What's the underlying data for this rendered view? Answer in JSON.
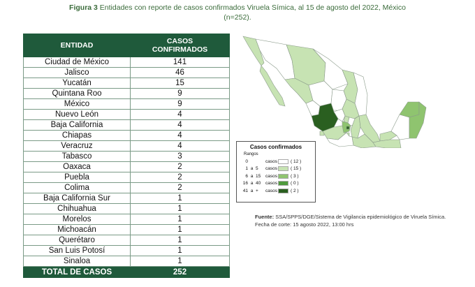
{
  "title": {
    "figure_label": "Figura 3",
    "text": "Entidades con reporte de casos confirmados Viruela Símica, al 15 de agosto del 2022, México",
    "n": "(n=252)."
  },
  "table": {
    "header_entity": "ENTIDAD",
    "header_cases": "CASOS CONFIRMADOS",
    "rows": [
      {
        "entity": "Ciudad de México",
        "cases": "141"
      },
      {
        "entity": "Jalisco",
        "cases": "46"
      },
      {
        "entity": "Yucatán",
        "cases": "15"
      },
      {
        "entity": "Quintana Roo",
        "cases": "9"
      },
      {
        "entity": "México",
        "cases": "9"
      },
      {
        "entity": "Nuevo León",
        "cases": "4"
      },
      {
        "entity": "Baja California",
        "cases": "4"
      },
      {
        "entity": "Chiapas",
        "cases": "4"
      },
      {
        "entity": "Veracruz",
        "cases": "4"
      },
      {
        "entity": "Tabasco",
        "cases": "3"
      },
      {
        "entity": "Oaxaca",
        "cases": "2"
      },
      {
        "entity": "Puebla",
        "cases": "2"
      },
      {
        "entity": "Colima",
        "cases": "2"
      },
      {
        "entity": "Baja California Sur",
        "cases": "1"
      },
      {
        "entity": "Chihuahua",
        "cases": "1"
      },
      {
        "entity": "Morelos",
        "cases": "1"
      },
      {
        "entity": "Michoacán",
        "cases": "1"
      },
      {
        "entity": "Querétaro",
        "cases": "1"
      },
      {
        "entity": "San Luis Potosí",
        "cases": "1"
      },
      {
        "entity": "Sinaloa",
        "cases": "1"
      }
    ],
    "total_label": "TOTAL DE CASOS",
    "total_value": "252"
  },
  "legend": {
    "title": "Casos confirmados",
    "subtitle": "Rangos",
    "rows": [
      {
        "from": "0",
        "sep": "",
        "to": "",
        "unit": "casos",
        "count": "( 12 )",
        "color": "#ffffff"
      },
      {
        "from": "1",
        "sep": "a",
        "to": "5",
        "unit": "casos",
        "count": "( 15 )",
        "color": "#c7e3b3"
      },
      {
        "from": "6",
        "sep": "a",
        "to": "15",
        "unit": "casos",
        "count": "( 3 )",
        "color": "#8fc46f"
      },
      {
        "from": "16",
        "sep": "a",
        "to": "40",
        "unit": "casos",
        "count": "( 0 )",
        "color": "#4f9a3c"
      },
      {
        "from": "41",
        "sep": "a",
        "to": "+",
        "unit": "casos",
        "count": "( 2 )",
        "color": "#2a5f20"
      }
    ]
  },
  "source": {
    "label": "Fuente:",
    "text": "SSA/SPPS/DGE/Sistema de Vigilancia epidemiológico de Viruela Símica. Fecha de corte: 15 agosto 2022, 13:00 hrs"
  }
}
